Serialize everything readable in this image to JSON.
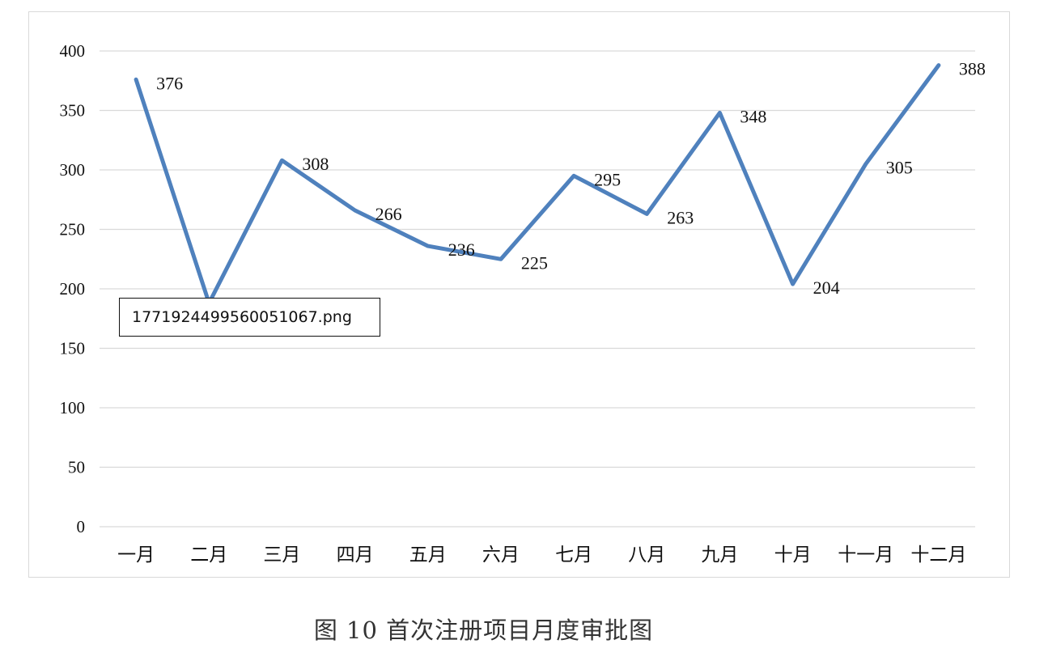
{
  "chart_data": {
    "type": "line",
    "categories": [
      "一月",
      "二月",
      "三月",
      "四月",
      "五月",
      "六月",
      "七月",
      "八月",
      "九月",
      "十月",
      "十一月",
      "十二月"
    ],
    "series": [
      {
        "values": [
          376,
          188,
          308,
          266,
          236,
          225,
          295,
          263,
          348,
          204,
          305,
          388
        ]
      }
    ],
    "value_labels": [
      "376",
      "188",
      "308",
      "266",
      "236",
      "225",
      "295",
      "263",
      "348",
      "204",
      "305",
      "388"
    ],
    "title": "",
    "xlabel": "",
    "ylabel": "",
    "ylim": [
      0,
      400
    ],
    "yticks": [
      0,
      50,
      100,
      150,
      200,
      250,
      300,
      350,
      400
    ],
    "grid": "horizontal",
    "legend": "none",
    "line_color": "#4f81bd",
    "grid_color": "#d9d9d9"
  },
  "caption": "图 10  首次注册项目月度审批图",
  "tooltip": "1771924499560051067.png"
}
